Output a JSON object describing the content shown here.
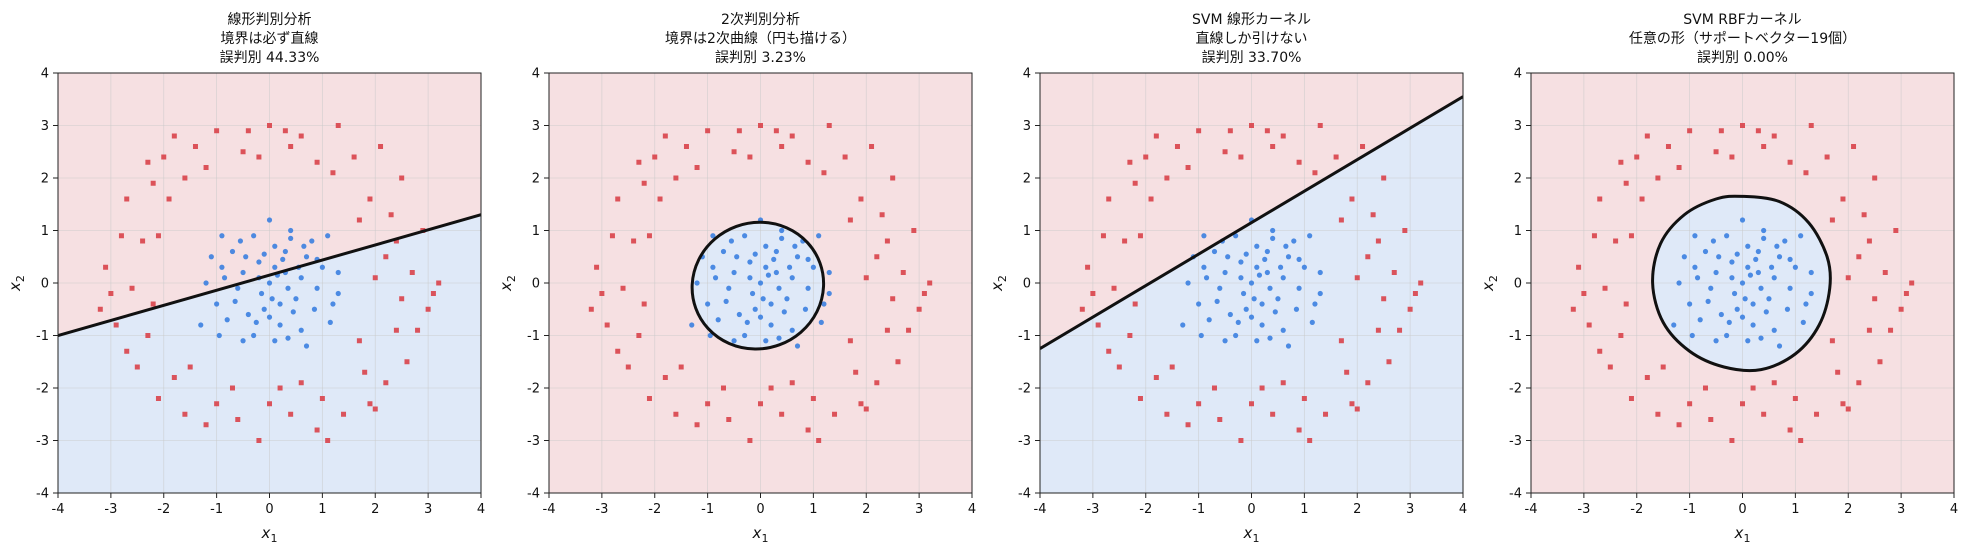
{
  "chart_data": [
    {
      "type": "scatter",
      "title_lines": [
        "線形判別分析",
        "境界は必ず直線",
        "誤判別 44.33%"
      ],
      "xlabel": "x1",
      "ylabel": "x2",
      "xlim": [
        -4,
        4
      ],
      "ylim": [
        -4,
        4
      ],
      "ticks": [
        -4,
        -3,
        -2,
        -1,
        0,
        1,
        2,
        3,
        4
      ],
      "grid": true,
      "boundary": {
        "kind": "line",
        "points": [
          [
            -4,
            -1.0
          ],
          [
            4,
            1.3
          ]
        ]
      },
      "region_inside_color": "#dfe9f8",
      "region_outside_color": "#f6e0e2"
    },
    {
      "type": "scatter",
      "title_lines": [
        "2次判別分析",
        "境界は2次曲線（円も描ける）",
        "誤判別 3.23%"
      ],
      "xlabel": "x1",
      "ylabel": "x2",
      "xlim": [
        -4,
        4
      ],
      "ylim": [
        -4,
        4
      ],
      "ticks": [
        -4,
        -3,
        -2,
        -1,
        0,
        1,
        2,
        3,
        4
      ],
      "grid": true,
      "boundary": {
        "kind": "ellipse",
        "cx": -0.05,
        "cy": -0.05,
        "rx": 1.25,
        "ry": 1.2,
        "angle": 20
      },
      "region_inside_color": "#dfe9f8",
      "region_outside_color": "#f6e0e2"
    },
    {
      "type": "scatter",
      "title_lines": [
        "SVM 線形カーネル",
        "直線しか引けない",
        "誤判別 33.70%"
      ],
      "xlabel": "x1",
      "ylabel": "x2",
      "xlim": [
        -4,
        4
      ],
      "ylim": [
        -4,
        4
      ],
      "ticks": [
        -4,
        -3,
        -2,
        -1,
        0,
        1,
        2,
        3,
        4
      ],
      "grid": true,
      "boundary": {
        "kind": "line",
        "points": [
          [
            -4,
            -1.25
          ],
          [
            4,
            3.55
          ]
        ]
      },
      "region_inside_color": "#dfe9f8",
      "region_outside_color": "#f6e0e2"
    },
    {
      "type": "scatter",
      "title_lines": [
        "SVM RBFカーネル",
        "任意の形（サポートベクター19個）",
        "誤判別 0.00%"
      ],
      "xlabel": "x1",
      "ylabel": "x2",
      "xlim": [
        -4,
        4
      ],
      "ylim": [
        -4,
        4
      ],
      "ticks": [
        -4,
        -3,
        -2,
        -1,
        0,
        1,
        2,
        3,
        4
      ],
      "grid": true,
      "boundary": {
        "kind": "closed-curve",
        "points": [
          [
            0.0,
            1.65
          ],
          [
            0.7,
            1.55
          ],
          [
            1.25,
            1.15
          ],
          [
            1.6,
            0.5
          ],
          [
            1.65,
            -0.1
          ],
          [
            1.45,
            -0.8
          ],
          [
            1.0,
            -1.35
          ],
          [
            0.35,
            -1.65
          ],
          [
            -0.35,
            -1.6
          ],
          [
            -1.0,
            -1.3
          ],
          [
            -1.5,
            -0.75
          ],
          [
            -1.7,
            0.0
          ],
          [
            -1.55,
            0.75
          ],
          [
            -1.1,
            1.3
          ],
          [
            -0.5,
            1.6
          ]
        ]
      },
      "region_inside_color": "#dfe9f8",
      "region_outside_color": "#f6e0e2"
    }
  ],
  "shared_points": {
    "class_inner": {
      "color": "#3b7fe0",
      "marker": "circle",
      "points": [
        [
          0.0,
          0.0
        ],
        [
          0.3,
          0.2
        ],
        [
          -0.2,
          0.4
        ],
        [
          0.5,
          -0.3
        ],
        [
          -0.6,
          -0.1
        ],
        [
          0.1,
          0.7
        ],
        [
          0.7,
          0.5
        ],
        [
          -0.4,
          -0.6
        ],
        [
          0.2,
          -0.8
        ],
        [
          -0.9,
          0.3
        ],
        [
          0.9,
          -0.1
        ],
        [
          -0.3,
          0.9
        ],
        [
          0.4,
          1.0
        ],
        [
          -0.8,
          -0.7
        ],
        [
          1.0,
          0.3
        ],
        [
          0.6,
          -0.9
        ],
        [
          -1.0,
          -0.4
        ],
        [
          0.15,
          0.15
        ],
        [
          -0.15,
          -0.2
        ],
        [
          0.35,
          -0.1
        ],
        [
          -0.5,
          0.2
        ],
        [
          0.6,
          0.1
        ],
        [
          -0.1,
          -0.5
        ],
        [
          0.25,
          0.45
        ],
        [
          -0.7,
          0.6
        ],
        [
          0.8,
          0.8
        ],
        [
          -0.3,
          -1.0
        ],
        [
          0.45,
          -0.55
        ],
        [
          1.2,
          -0.4
        ],
        [
          -1.2,
          0.0
        ],
        [
          0.0,
          1.2
        ],
        [
          0.1,
          -1.1
        ],
        [
          -0.9,
          0.9
        ],
        [
          1.1,
          0.9
        ],
        [
          -0.5,
          -1.1
        ],
        [
          0.7,
          -1.2
        ],
        [
          1.3,
          0.2
        ],
        [
          -1.3,
          -0.8
        ],
        [
          0.3,
          0.6
        ],
        [
          -0.2,
          0.1
        ],
        [
          0.05,
          -0.3
        ],
        [
          0.55,
          0.3
        ],
        [
          -0.45,
          0.5
        ],
        [
          0.2,
          -0.4
        ],
        [
          -0.65,
          -0.35
        ],
        [
          0.85,
          -0.5
        ],
        [
          -0.85,
          0.1
        ],
        [
          0.4,
          0.85
        ],
        [
          -0.1,
          0.55
        ],
        [
          0.1,
          0.3
        ],
        [
          -0.25,
          -0.75
        ],
        [
          0.65,
          0.7
        ],
        [
          -1.1,
          0.5
        ],
        [
          1.15,
          -0.75
        ],
        [
          0.0,
          -0.65
        ],
        [
          0.35,
          -1.05
        ],
        [
          -0.55,
          0.8
        ],
        [
          0.9,
          0.45
        ],
        [
          -0.95,
          -1.0
        ],
        [
          1.3,
          -0.2
        ]
      ]
    },
    "class_outer": {
      "color": "#d9424a",
      "marker": "square",
      "points": [
        [
          2.0,
          0.1
        ],
        [
          2.4,
          0.8
        ],
        [
          1.9,
          1.6
        ],
        [
          1.2,
          2.1
        ],
        [
          0.4,
          2.6
        ],
        [
          -0.5,
          2.5
        ],
        [
          -1.2,
          2.2
        ],
        [
          -1.9,
          1.6
        ],
        [
          -2.4,
          0.8
        ],
        [
          -2.6,
          -0.1
        ],
        [
          -2.3,
          -1.0
        ],
        [
          -1.8,
          -1.8
        ],
        [
          -1.0,
          -2.3
        ],
        [
          0.0,
          -2.3
        ],
        [
          1.0,
          -2.2
        ],
        [
          1.8,
          -1.7
        ],
        [
          2.4,
          -0.9
        ],
        [
          2.7,
          0.2
        ],
        [
          2.3,
          1.3
        ],
        [
          1.6,
          2.4
        ],
        [
          0.6,
          2.8
        ],
        [
          -0.4,
          2.9
        ],
        [
          -1.4,
          2.6
        ],
        [
          -2.2,
          1.9
        ],
        [
          -2.8,
          0.9
        ],
        [
          -3.0,
          -0.2
        ],
        [
          -2.7,
          -1.3
        ],
        [
          -2.1,
          -2.2
        ],
        [
          -1.2,
          -2.7
        ],
        [
          -0.2,
          -3.0
        ],
        [
          0.9,
          -2.8
        ],
        [
          1.9,
          -2.3
        ],
        [
          2.6,
          -1.5
        ],
        [
          3.0,
          -0.5
        ],
        [
          3.1,
          -0.2
        ],
        [
          2.9,
          1.0
        ],
        [
          2.5,
          2.0
        ],
        [
          1.3,
          3.0
        ],
        [
          0.0,
          3.0
        ],
        [
          -1.0,
          2.9
        ],
        [
          -2.0,
          2.4
        ],
        [
          -2.7,
          1.6
        ],
        [
          -3.1,
          0.3
        ],
        [
          -3.2,
          -0.5
        ],
        [
          -2.5,
          -1.6
        ],
        [
          -1.6,
          -2.5
        ],
        [
          -0.6,
          -2.6
        ],
        [
          0.4,
          -2.5
        ],
        [
          1.4,
          -2.5
        ],
        [
          2.2,
          -1.9
        ],
        [
          2.8,
          -0.9
        ],
        [
          2.2,
          0.5
        ],
        [
          1.7,
          1.2
        ],
        [
          0.9,
          2.3
        ],
        [
          -0.2,
          2.4
        ],
        [
          -1.6,
          2.0
        ],
        [
          -2.1,
          0.9
        ],
        [
          -2.2,
          -0.4
        ],
        [
          -1.5,
          -1.6
        ],
        [
          0.6,
          -1.9
        ],
        [
          1.7,
          -1.1
        ],
        [
          2.5,
          -0.3
        ],
        [
          3.2,
          0.0
        ],
        [
          2.1,
          2.6
        ],
        [
          -2.9,
          -0.8
        ],
        [
          -2.3,
          2.3
        ],
        [
          0.3,
          2.9
        ],
        [
          1.1,
          -3.0
        ],
        [
          -0.7,
          -2.0
        ],
        [
          2.0,
          -2.4
        ],
        [
          -1.8,
          2.8
        ],
        [
          0.2,
          -2.0
        ]
      ]
    }
  }
}
